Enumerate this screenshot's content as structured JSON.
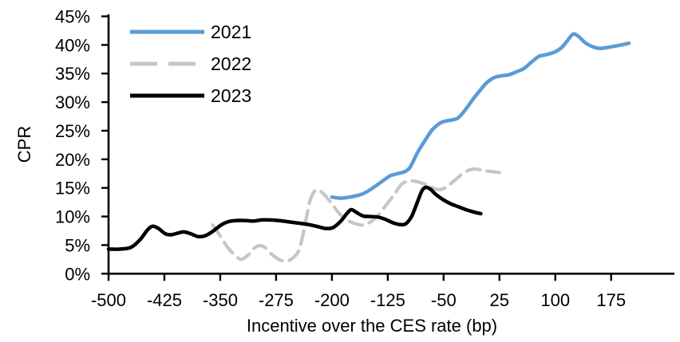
{
  "chart_data": {
    "type": "line",
    "title": "",
    "xlabel": "Incentive over the CES rate (bp)",
    "ylabel": "CPR",
    "xlim": [
      -500,
      260
    ],
    "ylim": [
      0,
      45.35
    ],
    "grid": false,
    "legend_position": "top-left-inside",
    "axis_color": "#000000",
    "background_color": "#ffffff",
    "x_ticks": [
      {
        "value": -500,
        "label": "-500"
      },
      {
        "value": -425,
        "label": "-425"
      },
      {
        "value": -350,
        "label": "-350"
      },
      {
        "value": -275,
        "label": "-275"
      },
      {
        "value": -200,
        "label": "-200"
      },
      {
        "value": -125,
        "label": "-125"
      },
      {
        "value": -50,
        "label": "-50"
      },
      {
        "value": 25,
        "label": "25"
      },
      {
        "value": 100,
        "label": "100"
      },
      {
        "value": 175,
        "label": "175"
      }
    ],
    "y_ticks": [
      {
        "value": 0,
        "label": "0%"
      },
      {
        "value": 5,
        "label": "5%"
      },
      {
        "value": 10,
        "label": "10%"
      },
      {
        "value": 15,
        "label": "15%"
      },
      {
        "value": 20,
        "label": "20%"
      },
      {
        "value": 25,
        "label": "25%"
      },
      {
        "value": 30,
        "label": "30%"
      },
      {
        "value": 35,
        "label": "35%"
      },
      {
        "value": 40,
        "label": "40%"
      },
      {
        "value": 45,
        "label": "45%"
      }
    ],
    "series": [
      {
        "name": "2021",
        "color": "#5B9BD5",
        "style": "solid",
        "stroke_width": 4.5,
        "z": 2,
        "points": [
          [
            -200,
            13.4
          ],
          [
            -188,
            13.2
          ],
          [
            -172,
            13.5
          ],
          [
            -158,
            14.0
          ],
          [
            -145,
            15.0
          ],
          [
            -132,
            16.2
          ],
          [
            -122,
            17.1
          ],
          [
            -112,
            17.5
          ],
          [
            -103,
            17.8
          ],
          [
            -95,
            18.6
          ],
          [
            -85,
            21.2
          ],
          [
            -75,
            23.3
          ],
          [
            -65,
            25.2
          ],
          [
            -55,
            26.3
          ],
          [
            -47,
            26.7
          ],
          [
            -38,
            26.9
          ],
          [
            -30,
            27.3
          ],
          [
            -20,
            28.8
          ],
          [
            -10,
            30.6
          ],
          [
            0,
            32.2
          ],
          [
            8,
            33.4
          ],
          [
            18,
            34.3
          ],
          [
            28,
            34.6
          ],
          [
            38,
            34.8
          ],
          [
            48,
            35.3
          ],
          [
            58,
            35.9
          ],
          [
            68,
            37.0
          ],
          [
            78,
            38.0
          ],
          [
            88,
            38.3
          ],
          [
            98,
            38.7
          ],
          [
            108,
            39.5
          ],
          [
            116,
            40.7
          ],
          [
            124,
            41.9
          ],
          [
            132,
            41.4
          ],
          [
            140,
            40.4
          ],
          [
            150,
            39.7
          ],
          [
            160,
            39.4
          ],
          [
            172,
            39.6
          ],
          [
            185,
            39.9
          ],
          [
            199,
            40.3
          ]
        ]
      },
      {
        "name": "2022",
        "color": "#C6C6C6",
        "style": "dashed",
        "stroke_width": 4.2,
        "z": 1,
        "points": [
          [
            -360,
            8.5
          ],
          [
            -350,
            6.6
          ],
          [
            -340,
            4.6
          ],
          [
            -330,
            3.2
          ],
          [
            -322,
            2.5
          ],
          [
            -313,
            3.2
          ],
          [
            -305,
            4.4
          ],
          [
            -298,
            4.9
          ],
          [
            -290,
            4.6
          ],
          [
            -281,
            3.4
          ],
          [
            -271,
            2.5
          ],
          [
            -261,
            2.2
          ],
          [
            -252,
            2.8
          ],
          [
            -244,
            4.2
          ],
          [
            -237,
            8.0
          ],
          [
            -230,
            12.5
          ],
          [
            -224,
            14.3
          ],
          [
            -218,
            14.6
          ],
          [
            -210,
            13.8
          ],
          [
            -200,
            12.2
          ],
          [
            -190,
            10.5
          ],
          [
            -180,
            9.4
          ],
          [
            -170,
            8.8
          ],
          [
            -160,
            8.5
          ],
          [
            -150,
            8.9
          ],
          [
            -138,
            10.2
          ],
          [
            -126,
            12.2
          ],
          [
            -116,
            13.9
          ],
          [
            -106,
            15.7
          ],
          [
            -96,
            16.2
          ],
          [
            -86,
            16.1
          ],
          [
            -76,
            15.7
          ],
          [
            -66,
            15.1
          ],
          [
            -57,
            14.7
          ],
          [
            -48,
            15.0
          ],
          [
            -38,
            16.0
          ],
          [
            -28,
            17.1
          ],
          [
            -18,
            18.0
          ],
          [
            -8,
            18.3
          ],
          [
            2,
            18.1
          ],
          [
            12,
            17.9
          ],
          [
            25,
            17.7
          ]
        ]
      },
      {
        "name": "2023",
        "color": "#000000",
        "style": "solid",
        "stroke_width": 4.5,
        "z": 3,
        "points": [
          [
            -500,
            4.3
          ],
          [
            -485,
            4.3
          ],
          [
            -470,
            4.6
          ],
          [
            -458,
            5.9
          ],
          [
            -448,
            7.6
          ],
          [
            -441,
            8.3
          ],
          [
            -433,
            7.9
          ],
          [
            -424,
            7.0
          ],
          [
            -416,
            6.8
          ],
          [
            -407,
            7.1
          ],
          [
            -399,
            7.3
          ],
          [
            -390,
            7.0
          ],
          [
            -380,
            6.5
          ],
          [
            -371,
            6.6
          ],
          [
            -360,
            7.4
          ],
          [
            -349,
            8.5
          ],
          [
            -339,
            9.1
          ],
          [
            -328,
            9.3
          ],
          [
            -316,
            9.3
          ],
          [
            -305,
            9.2
          ],
          [
            -295,
            9.4
          ],
          [
            -285,
            9.4
          ],
          [
            -272,
            9.3
          ],
          [
            -260,
            9.1
          ],
          [
            -248,
            8.9
          ],
          [
            -237,
            8.7
          ],
          [
            -228,
            8.5
          ],
          [
            -218,
            8.2
          ],
          [
            -208,
            7.9
          ],
          [
            -198,
            8.1
          ],
          [
            -188,
            9.2
          ],
          [
            -180,
            10.5
          ],
          [
            -174,
            11.2
          ],
          [
            -167,
            10.7
          ],
          [
            -158,
            10.1
          ],
          [
            -148,
            10.0
          ],
          [
            -138,
            9.9
          ],
          [
            -128,
            9.5
          ],
          [
            -118,
            8.9
          ],
          [
            -109,
            8.6
          ],
          [
            -101,
            8.7
          ],
          [
            -93,
            10.0
          ],
          [
            -85,
            12.6
          ],
          [
            -79,
            14.5
          ],
          [
            -74,
            15.1
          ],
          [
            -68,
            14.8
          ],
          [
            -60,
            13.8
          ],
          [
            -50,
            12.9
          ],
          [
            -40,
            12.2
          ],
          [
            -30,
            11.7
          ],
          [
            -20,
            11.2
          ],
          [
            -10,
            10.8
          ],
          [
            0,
            10.5
          ]
        ]
      }
    ],
    "legend": {
      "items": [
        {
          "label": "2021",
          "series": "2021"
        },
        {
          "label": "2022",
          "series": "2022"
        },
        {
          "label": "2023",
          "series": "2023"
        }
      ]
    }
  }
}
